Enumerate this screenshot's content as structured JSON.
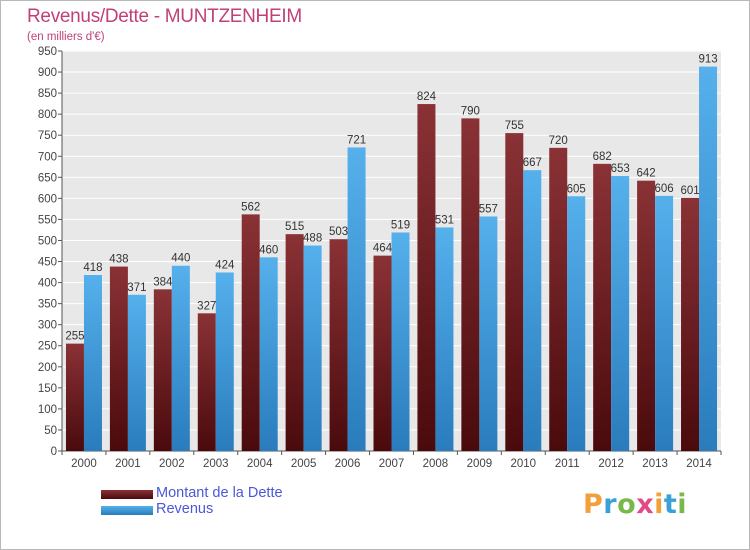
{
  "title": "Revenus/Dette - MUNTZENHEIM",
  "subtitle": "(en milliers d'€)",
  "logo": {
    "text": "Proxiti"
  },
  "colors": {
    "dette": "#7b2a2e",
    "revenus": "#4aa6e4",
    "title": "#c0407a",
    "legend_text": "#4a57d8"
  },
  "chart_data": {
    "type": "bar",
    "title": "Revenus/Dette - MUNTZENHEIM",
    "ylabel": "(en milliers d'€)",
    "xlabel": "",
    "ylim": [
      0,
      950
    ],
    "yticks": [
      "0",
      "50",
      "100",
      "150",
      "200",
      "250",
      "300",
      "350",
      "400",
      "450",
      "500",
      "550",
      "600",
      "650",
      "700",
      "750",
      "800",
      "850",
      "900",
      "950"
    ],
    "grid": true,
    "legend_position": "bottom-left",
    "categories": [
      "2000",
      "2001",
      "2002",
      "2003",
      "2004",
      "2005",
      "2006",
      "2007",
      "2008",
      "2009",
      "2010",
      "2011",
      "2012",
      "2013",
      "2014"
    ],
    "series": [
      {
        "name": "Montant de la Dette",
        "values": [
          255,
          438,
          384,
          327,
          562,
          515,
          503,
          464,
          824,
          790,
          755,
          720,
          682,
          642,
          601
        ]
      },
      {
        "name": "Revenus",
        "values": [
          418,
          371,
          440,
          424,
          460,
          488,
          721,
          519,
          531,
          557,
          667,
          605,
          653,
          606,
          913
        ]
      }
    ]
  }
}
